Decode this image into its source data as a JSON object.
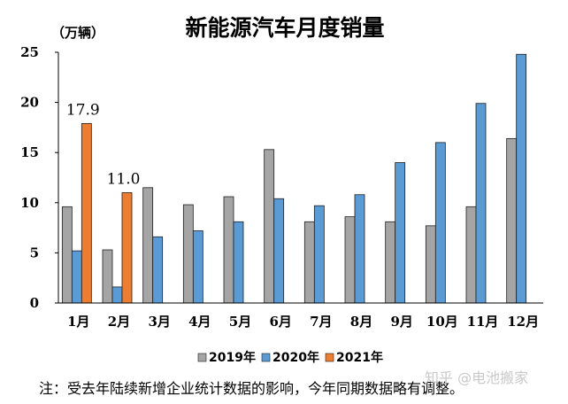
{
  "chart_data": {
    "type": "bar",
    "title": "新能源汽车月度销量",
    "unit_label": "（万辆）",
    "categories": [
      "1月",
      "2月",
      "3月",
      "4月",
      "5月",
      "6月",
      "7月",
      "8月",
      "9月",
      "10月",
      "11月",
      "12月"
    ],
    "series": [
      {
        "name": "2019年",
        "color": "#a5a5a5",
        "values": [
          9.6,
          5.3,
          11.5,
          9.8,
          10.6,
          15.3,
          8.1,
          8.6,
          8.1,
          7.7,
          9.6,
          16.4
        ]
      },
      {
        "name": "2020年",
        "color": "#5b9bd5",
        "values": [
          5.2,
          1.6,
          6.6,
          7.2,
          8.1,
          10.4,
          9.7,
          10.8,
          14.0,
          16.0,
          19.9,
          24.8
        ]
      },
      {
        "name": "2021年",
        "color": "#ed7d31",
        "values": [
          17.9,
          11.0,
          null,
          null,
          null,
          null,
          null,
          null,
          null,
          null,
          null,
          null
        ]
      }
    ],
    "data_labels": [
      "17.9",
      "11.0"
    ],
    "yticks": [
      "0",
      "5",
      "10",
      "15",
      "20",
      "25"
    ],
    "ylim": [
      0,
      25
    ],
    "grid": false,
    "legend_position": "bottom"
  },
  "note": "注：受去年陆续新增企业统计数据的影响，今年同期数据略有调整。",
  "watermark": "知乎 @电池搬家"
}
